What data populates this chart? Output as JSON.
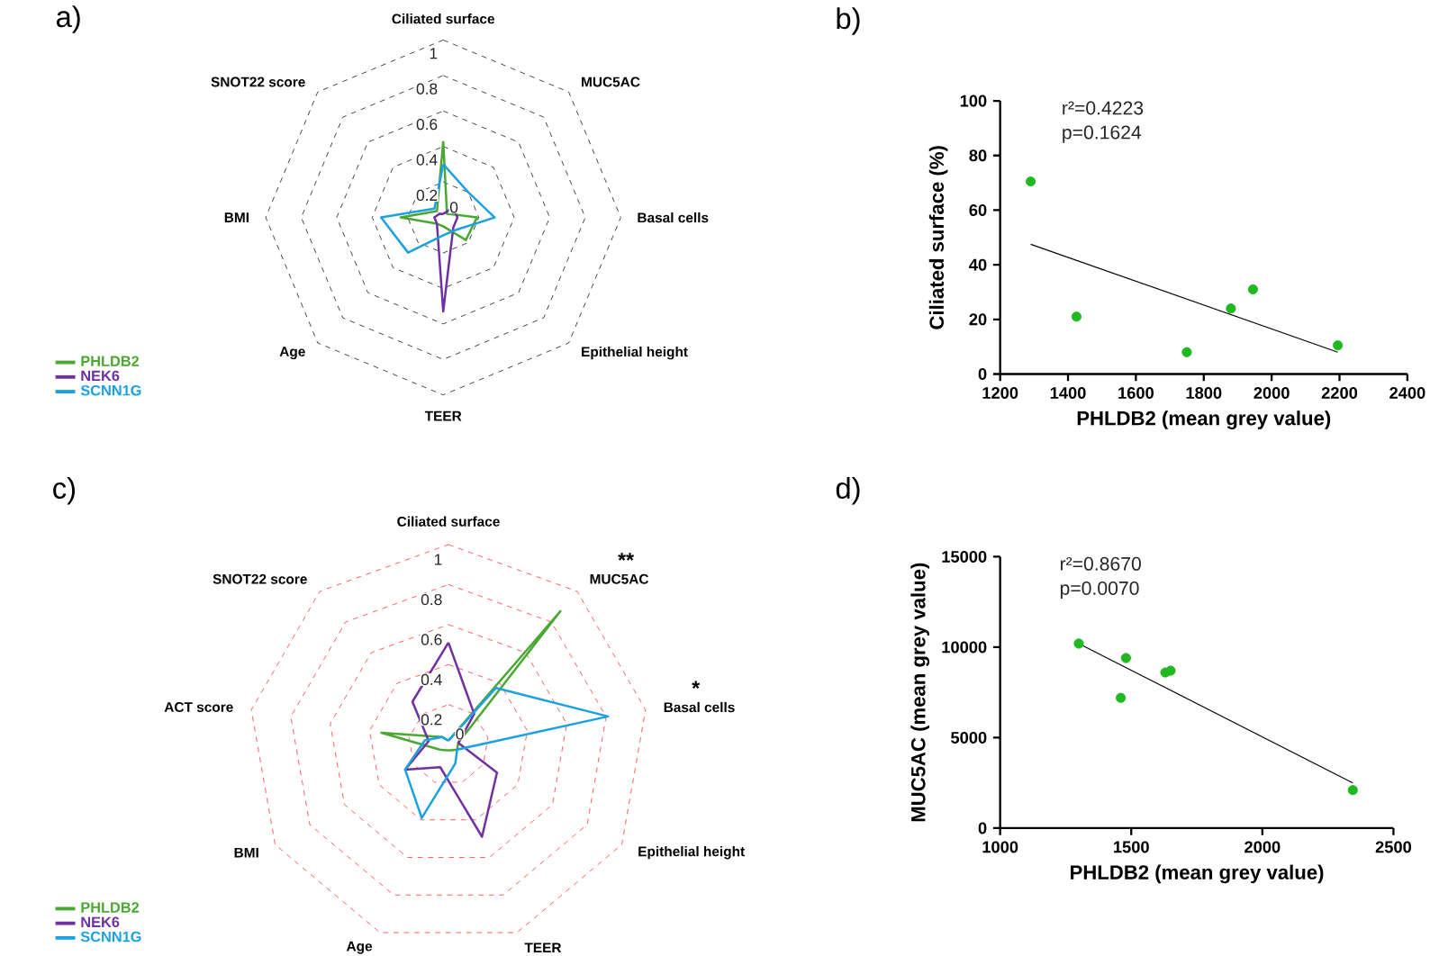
{
  "chart_data": [
    {
      "type": "radar",
      "title": "a)",
      "categories": [
        "Ciliated surface",
        "MUC5AC",
        "Basal cells",
        "Epithelial height",
        "TEER",
        "Age",
        "BMI",
        "SNOT22 score"
      ],
      "ylim": [
        0,
        1
      ],
      "yticks": [
        0,
        0.2,
        0.4,
        0.6,
        0.8,
        1
      ],
      "grid": true,
      "legend": "bottom left",
      "series": [
        {
          "name": "PHLDB2",
          "color": "#4aa832",
          "values": [
            0.43,
            0.03,
            0.19,
            0.18,
            0.05,
            0.05,
            0.24,
            0.05
          ]
        },
        {
          "name": "NEK6",
          "color": "#7030a0",
          "values": [
            0.02,
            0.08,
            0.08,
            0.08,
            0.53,
            0.05,
            0.05,
            0.03
          ]
        },
        {
          "name": "SCNN1G",
          "color": "#1ba1e2",
          "values": [
            0.3,
            0.2,
            0.29,
            0.1,
            0.1,
            0.28,
            0.35,
            0.07
          ]
        }
      ]
    },
    {
      "type": "scatter",
      "title": "b)",
      "xlabel": "PHLDB2 (mean grey value)",
      "ylabel": "Ciliated surface (%)",
      "xlim": [
        1200,
        2400
      ],
      "xticks": [
        1200,
        1400,
        1600,
        1800,
        2000,
        2200,
        2400
      ],
      "ylim": [
        0,
        100
      ],
      "yticks": [
        0,
        20,
        40,
        60,
        80,
        100
      ],
      "annotations": [
        "r²=0.4223",
        "p=0.1624"
      ],
      "series": [
        {
          "type": "scatter",
          "color": "#22b822",
          "marker": "circle",
          "x": [
            1290,
            1425,
            1750,
            1880,
            1945,
            2195
          ],
          "values": [
            70.5,
            21,
            8,
            24,
            31,
            10.5
          ]
        },
        {
          "type": "line",
          "color": "#000000",
          "x": [
            1290,
            2195
          ],
          "values": [
            47.5,
            8
          ]
        }
      ]
    },
    {
      "type": "radar",
      "title": "c)",
      "categories": [
        "Ciliated surface",
        "MUC5AC",
        "Basal cells",
        "Epithelial height",
        "TEER",
        "Age",
        "BMI",
        "ACT score",
        "SNOT22 score"
      ],
      "ylim": [
        0,
        1
      ],
      "yticks": [
        0,
        0.2,
        0.4,
        0.6,
        0.8,
        1
      ],
      "grid": true,
      "legend": "bottom left",
      "annotations": [
        {
          "text": "**",
          "x": "MUC5AC"
        },
        {
          "text": "*",
          "x": "Basal cells"
        }
      ],
      "series": [
        {
          "name": "PHLDB2",
          "color": "#4aa832",
          "values": [
            0.02,
            0.87,
            0.05,
            0.05,
            0.03,
            0.03,
            0.05,
            0.34,
            0.05
          ]
        },
        {
          "name": "NEK6",
          "color": "#7030a0",
          "values": [
            0.51,
            0.2,
            0.05,
            0.28,
            0.49,
            0.12,
            0.25,
            0.1,
            0.28
          ]
        },
        {
          "name": "SCNN1G",
          "color": "#1ba1e2",
          "values": [
            0.02,
            0.37,
            0.81,
            0.05,
            0.1,
            0.39,
            0.25,
            0.12,
            0.05
          ]
        }
      ]
    },
    {
      "type": "scatter",
      "title": "d)",
      "xlabel": "PHLDB2 (mean grey value)",
      "ylabel": "MUC5AC (mean grey value)",
      "xlim": [
        1000,
        2500
      ],
      "xticks": [
        1000,
        1500,
        2000,
        2500
      ],
      "ylim": [
        0,
        15000
      ],
      "yticks": [
        0,
        5000,
        10000,
        15000
      ],
      "annotations": [
        "r²=0.8670",
        "p=0.0070"
      ],
      "series": [
        {
          "type": "scatter",
          "color": "#22b822",
          "marker": "circle",
          "x": [
            1300,
            1460,
            1480,
            1630,
            1650,
            2345
          ],
          "values": [
            10200,
            7200,
            9400,
            8600,
            8700,
            2100
          ]
        },
        {
          "type": "line",
          "color": "#000000",
          "x": [
            1300,
            2345
          ],
          "values": [
            10200,
            2500
          ]
        }
      ]
    }
  ]
}
